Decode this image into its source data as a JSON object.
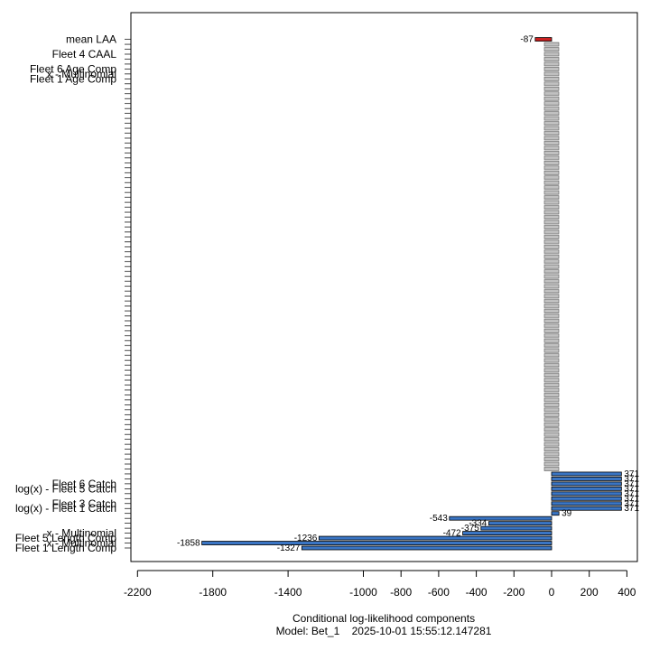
{
  "chart_data": {
    "type": "bar",
    "orientation": "horizontal",
    "xlabel": "Conditional log-likelihood components",
    "subtitle": "Model: Bet_1    2025-10-01 15:55:12.147281",
    "xlim": [
      -2250,
      420
    ],
    "x_ticks": [
      -2200,
      -1800,
      -1400,
      -1000,
      -800,
      -600,
      -400,
      -200,
      0,
      200,
      400
    ],
    "colors": {
      "bar": "#3a75c4",
      "bar_outline": "#000000",
      "highlight": "#cc2222",
      "zero_marker": "#c0c0c0"
    },
    "y_tick_labels": [
      {
        "row": 0,
        "label": "Fleet 1 Length Comp"
      },
      {
        "row": 1,
        "label": "x - Multinomial"
      },
      {
        "row": 2,
        "label": "Fleet 5 Length Comp"
      },
      {
        "row": 3,
        "label": "x - Multinomial"
      },
      {
        "row": 8,
        "label": "log(x) - Fleet 1 Catch"
      },
      {
        "row": 9,
        "label": "Fleet 3 Catch"
      },
      {
        "row": 12,
        "label": "log(x) - Fleet 5 Catch"
      },
      {
        "row": 13,
        "label": "Fleet 6 Catch"
      },
      {
        "row": 95,
        "label": "Fleet 1 Age Comp"
      },
      {
        "row": 96,
        "label": "x - Multinomial"
      },
      {
        "row": 97,
        "label": "Fleet 6 Age Comp"
      },
      {
        "row": 100,
        "label": "Fleet 4 CAAL"
      },
      {
        "row": 103,
        "label": "mean LAA"
      }
    ],
    "bars": [
      {
        "row": 0,
        "value": -1327,
        "label": "-1327"
      },
      {
        "row": 1,
        "value": -1858,
        "label": "-1858"
      },
      {
        "row": 2,
        "value": -1236,
        "label": "-1236"
      },
      {
        "row": 3,
        "value": -472,
        "label": "-472"
      },
      {
        "row": 4,
        "value": -375,
        "label": "-375"
      },
      {
        "row": 5,
        "value": -334,
        "label": "-334"
      },
      {
        "row": 6,
        "value": -543,
        "label": "-543"
      },
      {
        "row": 7,
        "value": 39,
        "label": "39"
      },
      {
        "row": 8,
        "value": 371,
        "label": "371"
      },
      {
        "row": 9,
        "value": 371,
        "label": "371"
      },
      {
        "row": 10,
        "value": 371,
        "label": "371"
      },
      {
        "row": 11,
        "value": 371,
        "label": "371"
      },
      {
        "row": 12,
        "value": 371,
        "label": "371"
      },
      {
        "row": 13,
        "value": 371,
        "label": "371"
      },
      {
        "row": 14,
        "value": 371,
        "label": "371"
      },
      {
        "row": 15,
        "value": 371,
        "label": "371"
      },
      {
        "row": 103,
        "value": -87,
        "label": "-87",
        "highlight": true
      }
    ],
    "rows": 104
  }
}
